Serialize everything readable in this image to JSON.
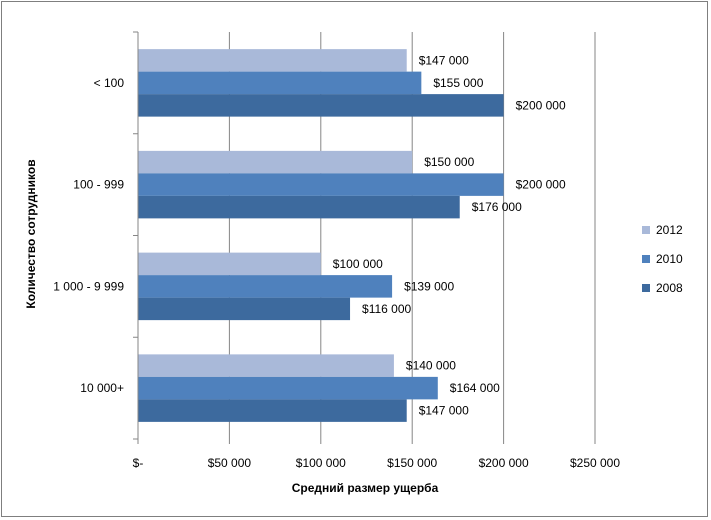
{
  "chart_data": {
    "type": "bar",
    "orientation": "horizontal",
    "categories": [
      "< 100",
      "100 - 999",
      "1 000 - 9 999",
      "10 000+"
    ],
    "series": [
      {
        "name": "2012",
        "color": "#a9b9d9",
        "values": [
          147000,
          150000,
          100000,
          140000
        ],
        "labels": [
          "$147 000",
          "$150 000",
          "$100 000",
          "$140 000"
        ]
      },
      {
        "name": "2010",
        "color": "#4f81bd",
        "values": [
          155000,
          200000,
          139000,
          164000
        ],
        "labels": [
          "$155 000",
          "$200 000",
          "$139 000",
          "$164 000"
        ]
      },
      {
        "name": "2008",
        "color": "#3d6a9e",
        "values": [
          200000,
          176000,
          116000,
          147000
        ],
        "labels": [
          "$200 000",
          "$176 000",
          "$116 000",
          "$147 000"
        ]
      }
    ],
    "xlim": [
      0,
      250000
    ],
    "xticks": [
      0,
      50000,
      100000,
      150000,
      200000,
      250000
    ],
    "xtick_labels": [
      "$-",
      "$50 000",
      "$100 000",
      "$150 000",
      "$200 000",
      "$250 000"
    ],
    "xlabel": "Средний размер ущерба",
    "ylabel": "Количество сотрудников",
    "grid": "vertical",
    "legend_position": "right"
  }
}
